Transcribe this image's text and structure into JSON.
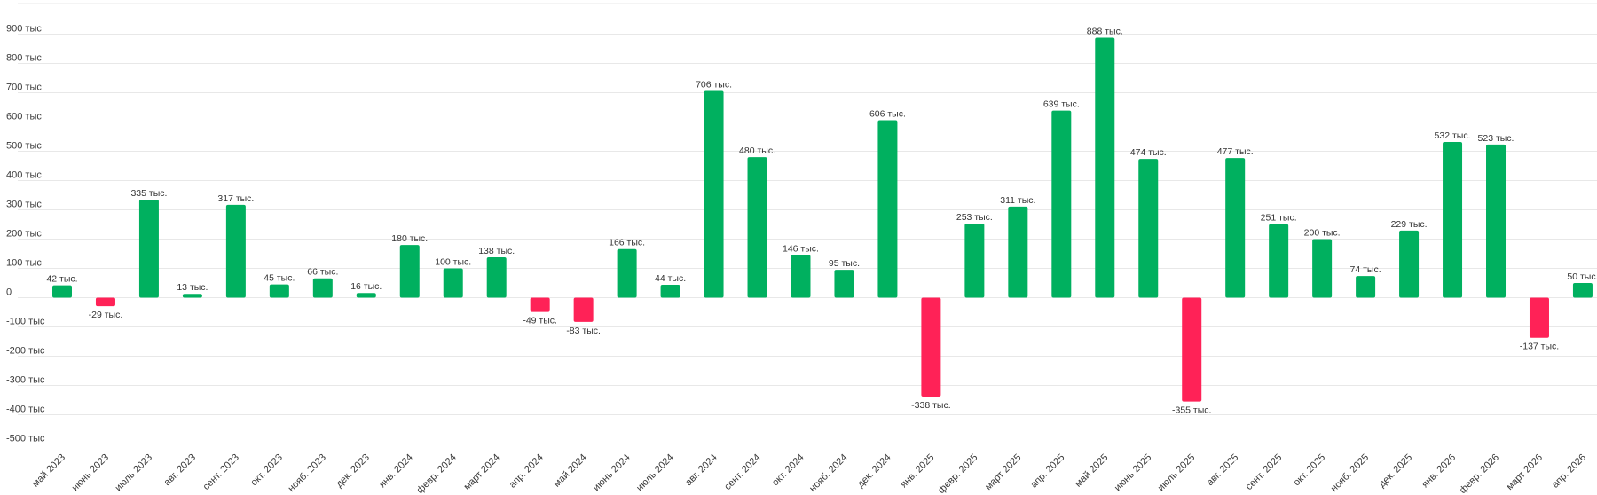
{
  "chart_data": {
    "type": "bar",
    "title": "",
    "xlabel": "",
    "ylabel": "",
    "ylim": [
      -500000,
      900000
    ],
    "grid": true,
    "colors": {
      "positive": "#00b05f",
      "negative": "#ff2257"
    },
    "yticks": [
      {
        "value": 900000,
        "label": "900 тыс"
      },
      {
        "value": 800000,
        "label": "800 тыс"
      },
      {
        "value": 700000,
        "label": "700 тыс"
      },
      {
        "value": 600000,
        "label": "600 тыс"
      },
      {
        "value": 500000,
        "label": "500 тыс"
      },
      {
        "value": 400000,
        "label": "400 тыс"
      },
      {
        "value": 300000,
        "label": "300 тыс"
      },
      {
        "value": 200000,
        "label": "200 тыс"
      },
      {
        "value": 100000,
        "label": "100 тыс"
      },
      {
        "value": 0,
        "label": "0"
      },
      {
        "value": -100000,
        "label": "-100 тыс"
      },
      {
        "value": -200000,
        "label": "-200 тыс"
      },
      {
        "value": -300000,
        "label": "-300 тыс"
      },
      {
        "value": -400000,
        "label": "-400 тыс"
      },
      {
        "value": -500000,
        "label": "-500 тыс"
      }
    ],
    "categories": [
      "май 2023",
      "июнь 2023",
      "июль 2023",
      "авг. 2023",
      "сент. 2023",
      "окт. 2023",
      "нояб. 2023",
      "дек. 2023",
      "янв. 2024",
      "февр. 2024",
      "март 2024",
      "апр. 2024",
      "май 2024",
      "июнь 2024",
      "июль 2024",
      "авг. 2024",
      "сент. 2024",
      "окт. 2024",
      "нояб. 2024",
      "дек. 2024",
      "янв. 2025",
      "февр. 2025",
      "март 2025",
      "апр. 2025",
      "май 2025",
      "июнь 2025",
      "июль 2025",
      "авг. 2025",
      "сент. 2025",
      "окт. 2025",
      "нояб. 2025",
      "дек. 2025",
      "янв. 2026",
      "февр. 2026",
      "март 2026",
      "апр. 2026"
    ],
    "values": [
      42000,
      -29000,
      335000,
      13000,
      317000,
      45000,
      66000,
      16000,
      180000,
      100000,
      138000,
      -49000,
      -83000,
      166000,
      44000,
      706000,
      480000,
      146000,
      95000,
      606000,
      -338000,
      253000,
      311000,
      639000,
      888000,
      474000,
      -355000,
      477000,
      251000,
      200000,
      74000,
      229000,
      532000,
      523000,
      -137000,
      50000
    ],
    "data_labels": [
      "42 тыс.",
      "-29 тыс.",
      "335 тыс.",
      "13 тыс.",
      "317 тыс.",
      "45 тыс.",
      "66 тыс.",
      "16 тыс.",
      "180 тыс.",
      "100 тыс.",
      "138 тыс.",
      "-49 тыс.",
      "-83 тыс.",
      "166 тыс.",
      "44 тыс.",
      "706 тыс.",
      "480 тыс.",
      "146 тыс.",
      "95 тыс.",
      "606 тыс.",
      "-338 тыс.",
      "253 тыс.",
      "311 тыс.",
      "639 тыс.",
      "888 тыс.",
      "474 тыс.",
      "-355 тыс.",
      "477 тыс.",
      "251 тыс.",
      "200 тыс.",
      "74 тыс.",
      "229 тыс.",
      "532 тыс.",
      "523 тыс.",
      "-137 тыс.",
      "50 тыс."
    ]
  }
}
